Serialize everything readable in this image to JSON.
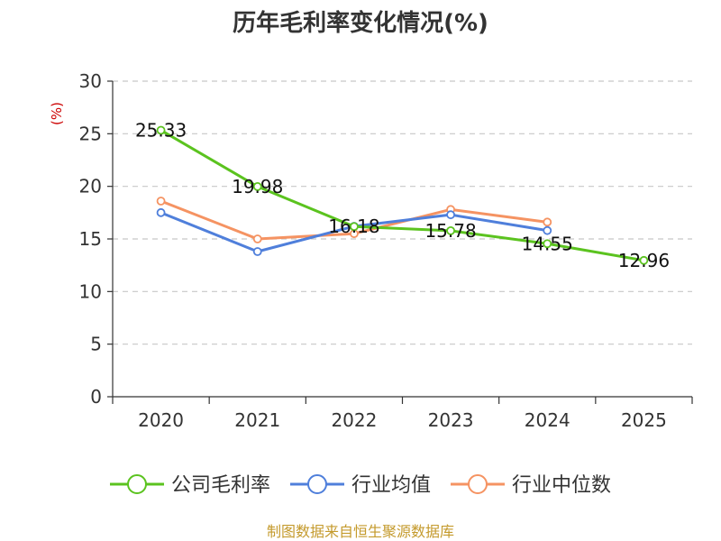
{
  "chart_data": {
    "type": "line",
    "title": "历年毛利率变化情况(%)",
    "ylabel": "(%)",
    "xlabel": "",
    "categories": [
      "2020",
      "2021",
      "2022",
      "2023",
      "2024",
      "2025"
    ],
    "ylim": [
      0,
      30
    ],
    "yticks": [
      0,
      5,
      10,
      15,
      20,
      25,
      30
    ],
    "grid": true,
    "legend_position": "bottom",
    "series": [
      {
        "name": "公司毛利率",
        "color": "#5bc31f",
        "values": [
          25.33,
          19.98,
          16.18,
          15.78,
          14.55,
          12.96
        ],
        "labels": [
          "25.33",
          "19.98",
          "16.18",
          "15.78",
          "14.55",
          "12.96"
        ]
      },
      {
        "name": "行业均值",
        "color": "#4f7fdb",
        "values": [
          17.5,
          13.8,
          16.2,
          17.3,
          15.8,
          null
        ]
      },
      {
        "name": "行业中位数",
        "color": "#f59362",
        "values": [
          18.6,
          15.0,
          15.5,
          17.8,
          16.6,
          null
        ]
      }
    ],
    "source": "制图数据来自恒生聚源数据库"
  }
}
